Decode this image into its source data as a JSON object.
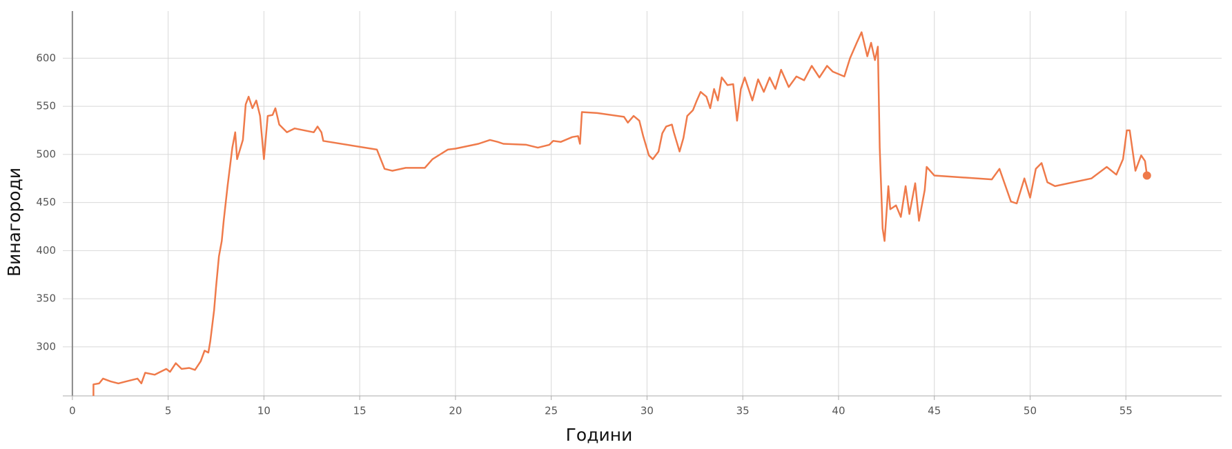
{
  "chart_data": {
    "type": "line",
    "xlabel": "Години",
    "ylabel": "Винагороди",
    "x": [
      1.1,
      1.1,
      1.4,
      1.6,
      2.0,
      2.4,
      2.8,
      3.4,
      3.6,
      3.8,
      4.3,
      4.9,
      5.1,
      5.4,
      5.7,
      6.1,
      6.4,
      6.7,
      6.9,
      7.1,
      7.2,
      7.4,
      7.5,
      7.65,
      7.8,
      7.9,
      8.1,
      8.35,
      8.5,
      8.6,
      8.9,
      9.05,
      9.2,
      9.4,
      9.6,
      9.8,
      10.0,
      10.2,
      10.45,
      10.6,
      10.8,
      11.2,
      11.6,
      12.6,
      12.8,
      13.0,
      13.1,
      15.9,
      16.3,
      16.7,
      17.4,
      18.4,
      18.8,
      19.6,
      20.0,
      21.2,
      21.8,
      22.2,
      22.5,
      23.7,
      24.3,
      24.9,
      25.1,
      25.5,
      26.1,
      26.4,
      26.5,
      26.6,
      27.4,
      28.8,
      29.0,
      29.3,
      29.6,
      29.8,
      30.1,
      30.3,
      30.6,
      30.8,
      31.0,
      31.3,
      31.4,
      31.7,
      31.9,
      32.1,
      32.4,
      32.6,
      32.8,
      33.1,
      33.3,
      33.5,
      33.7,
      33.9,
      34.2,
      34.5,
      34.7,
      34.9,
      35.1,
      35.5,
      35.8,
      36.1,
      36.4,
      36.7,
      37.0,
      37.4,
      37.8,
      38.2,
      38.6,
      39.0,
      39.4,
      39.7,
      40.3,
      40.6,
      40.95,
      41.2,
      41.5,
      41.7,
      41.9,
      42.05,
      42.15,
      42.3,
      42.4,
      42.6,
      42.7,
      43.0,
      43.25,
      43.5,
      43.7,
      44.0,
      44.2,
      44.5,
      44.6,
      45.0,
      48.0,
      48.4,
      49.0,
      49.3,
      49.7,
      50.0,
      50.3,
      50.6,
      50.9,
      51.3,
      53.2,
      54.0,
      54.5,
      54.85,
      55.05,
      55.2,
      55.5,
      55.8,
      56.0,
      56.1
    ],
    "values": [
      249,
      261,
      262,
      267,
      264,
      262,
      264,
      267,
      262,
      273,
      271,
      277,
      274,
      283,
      277,
      278,
      276,
      285,
      296,
      294,
      306,
      338,
      362,
      394,
      410,
      431,
      467,
      507,
      523,
      495,
      515,
      552,
      560,
      548,
      556,
      540,
      495,
      540,
      541,
      548,
      531,
      523,
      527,
      523,
      529,
      523,
      514,
      505,
      485,
      483,
      486,
      486,
      495,
      505,
      506,
      511,
      515,
      513,
      511,
      510,
      507,
      510,
      514,
      513,
      518,
      519,
      511,
      544,
      543,
      539,
      533,
      540,
      535,
      519,
      499,
      495,
      503,
      522,
      529,
      531,
      523,
      503,
      517,
      540,
      546,
      556,
      565,
      560,
      548,
      568,
      556,
      580,
      572,
      573,
      535,
      568,
      580,
      556,
      578,
      565,
      580,
      568,
      588,
      570,
      581,
      577,
      592,
      580,
      592,
      586,
      581,
      600,
      616,
      627,
      602,
      616,
      598,
      612,
      507,
      423,
      410,
      467,
      443,
      447,
      435,
      467,
      438,
      470,
      431,
      463,
      487,
      478,
      474,
      485,
      451,
      449,
      475,
      455,
      485,
      491,
      471,
      467,
      475,
      487,
      479,
      495,
      525,
      525,
      483,
      499,
      493,
      478
    ],
    "color": "#ef7a4a",
    "xlim": [
      -0.5,
      60
    ],
    "ylim": [
      249,
      649
    ],
    "xticks": [
      0,
      5,
      10,
      15,
      20,
      25,
      30,
      35,
      40,
      45,
      50,
      55
    ],
    "yticks": [
      300,
      350,
      400,
      450,
      500,
      550,
      600
    ],
    "grid": true
  }
}
